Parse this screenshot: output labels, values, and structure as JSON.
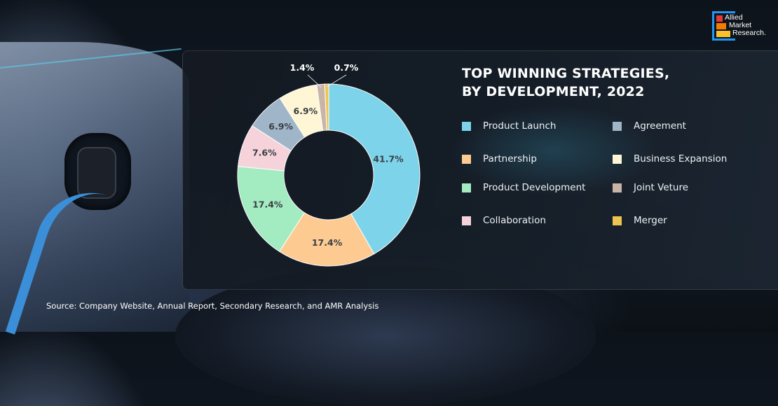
{
  "logo": {
    "text": [
      "Allied",
      "Market",
      "Research."
    ]
  },
  "source": "Source:  Company Website, Annual Report, Secondary Research, and AMR Analysis",
  "chart_data": {
    "type": "pie",
    "donut": true,
    "title_lines": [
      "TOP WINNING STRATEGIES,",
      "BY DEVELOPMENT, 2022"
    ],
    "legend_placement": "right",
    "slices": [
      {
        "label": "Product Launch",
        "value": 41.7,
        "text": "41.7%",
        "color": "#7dd3ea"
      },
      {
        "label": "Partnership",
        "value": 17.4,
        "text": "17.4%",
        "color": "#fdcb92"
      },
      {
        "label": "Product Development",
        "value": 17.4,
        "text": "17.4%",
        "color": "#a3ebc0"
      },
      {
        "label": "Collaboration",
        "value": 7.6,
        "text": "7.6%",
        "color": "#f6d3da"
      },
      {
        "label": "Agreement",
        "value": 6.9,
        "text": "6.9%",
        "color": "#a0b5c8"
      },
      {
        "label": "Business Expansion",
        "value": 6.9,
        "text": "6.9%",
        "color": "#fff6d6"
      },
      {
        "label": "Joint Veture",
        "value": 1.4,
        "text": "1.4%",
        "color": "#c8b5a8"
      },
      {
        "label": "Merger",
        "value": 0.7,
        "text": "0.7%",
        "color": "#eec451"
      }
    ],
    "legend_order": [
      "Product Launch",
      "Agreement",
      "Partnership",
      "Business Expansion",
      "Product Development",
      "Joint Veture",
      "Collaboration",
      "Merger"
    ]
  }
}
